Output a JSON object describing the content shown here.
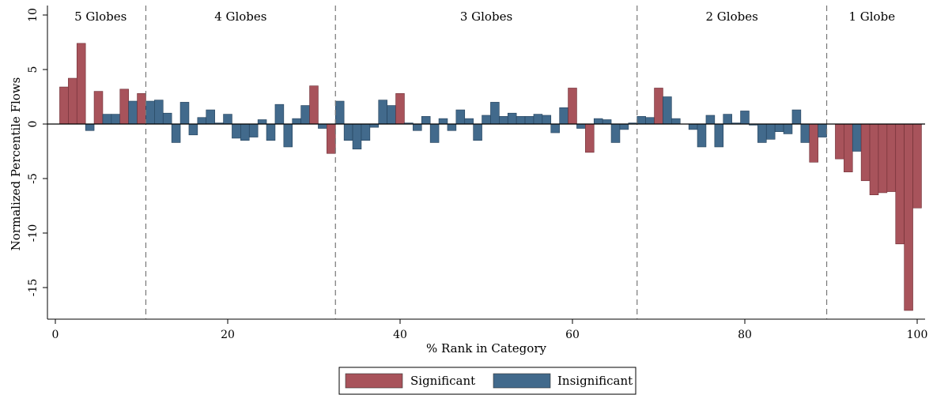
{
  "chart_data": {
    "type": "bar",
    "xlabel": "% Rank in Category",
    "ylabel": "Normalized Percentile Flows",
    "xlim": [
      0,
      100
    ],
    "ylim": [
      -18,
      10
    ],
    "xticks": [
      0,
      20,
      40,
      60,
      80,
      100
    ],
    "yticks": [
      10,
      5,
      0,
      -5,
      -10,
      -15
    ],
    "ytick_labels": [
      "10",
      "5",
      "0",
      "-5",
      "-10",
      "-15"
    ],
    "grid": false,
    "colors": {
      "Significant": "#a8535b",
      "Insignificant": "#426a8c"
    },
    "groups": [
      {
        "label": "5 Globes",
        "start": 0,
        "end": 10.5
      },
      {
        "label": "4 Globes",
        "start": 10.5,
        "end": 32.5
      },
      {
        "label": "3 Globes",
        "start": 32.5,
        "end": 67.5
      },
      {
        "label": "2 Globes",
        "start": 67.5,
        "end": 89.5
      },
      {
        "label": "1 Globe",
        "start": 89.5,
        "end": 100
      }
    ],
    "legend": {
      "position": "bottom-center",
      "entries": [
        "Significant",
        "Insignificant"
      ]
    },
    "x": [
      1,
      2,
      3,
      4,
      5,
      6,
      7,
      8,
      9,
      10,
      11,
      12,
      13,
      14,
      15,
      16,
      17,
      18,
      19,
      20,
      21,
      22,
      23,
      24,
      25,
      26,
      27,
      28,
      29,
      30,
      31,
      32,
      33,
      34,
      35,
      36,
      37,
      38,
      39,
      40,
      41,
      42,
      43,
      44,
      45,
      46,
      47,
      48,
      49,
      50,
      51,
      52,
      53,
      54,
      55,
      56,
      57,
      58,
      59,
      60,
      61,
      62,
      63,
      64,
      65,
      66,
      67,
      68,
      69,
      70,
      71,
      72,
      73,
      74,
      75,
      76,
      77,
      78,
      79,
      80,
      81,
      82,
      83,
      84,
      85,
      86,
      87,
      88,
      89,
      90,
      91,
      92,
      93,
      94,
      95,
      96,
      97,
      98,
      99,
      100
    ],
    "values": [
      3.4,
      4.2,
      7.4,
      -0.6,
      3.0,
      0.9,
      0.9,
      3.2,
      2.1,
      2.8,
      2.1,
      2.2,
      1.0,
      -1.7,
      2.0,
      -1.0,
      0.6,
      1.3,
      0.1,
      0.9,
      -1.3,
      -1.5,
      -1.2,
      0.4,
      -1.5,
      1.8,
      -2.1,
      0.5,
      1.7,
      3.5,
      -0.4,
      -2.7,
      2.1,
      -1.5,
      -2.3,
      -1.5,
      -0.3,
      2.2,
      1.7,
      2.8,
      0.1,
      -0.6,
      0.7,
      -1.7,
      0.5,
      -0.6,
      1.3,
      0.5,
      -1.5,
      0.8,
      2.0,
      0.7,
      1.0,
      0.7,
      0.7,
      0.9,
      0.8,
      -0.8,
      1.5,
      3.3,
      -0.4,
      -2.6,
      0.5,
      0.4,
      -1.7,
      -0.5,
      0.1,
      0.7,
      0.6,
      3.3,
      2.5,
      0.5,
      0.0,
      -0.5,
      -2.1,
      0.8,
      -2.1,
      0.9,
      0.1,
      1.2,
      -0.1,
      -1.7,
      -1.4,
      -0.7,
      -0.9,
      1.3,
      -1.7,
      -3.5,
      -1.2,
      0.0,
      -3.2,
      -4.4,
      -2.5,
      -5.2,
      -6.5,
      -6.3,
      -6.2,
      -11.0,
      -17.1,
      -7.7
    ],
    "significant": [
      1,
      1,
      1,
      0,
      1,
      0,
      0,
      1,
      0,
      1,
      0,
      0,
      0,
      0,
      0,
      0,
      0,
      0,
      0,
      0,
      0,
      0,
      0,
      0,
      0,
      0,
      0,
      0,
      0,
      1,
      0,
      1,
      0,
      0,
      0,
      0,
      0,
      0,
      0,
      1,
      0,
      0,
      0,
      0,
      0,
      0,
      0,
      0,
      0,
      0,
      0,
      0,
      0,
      0,
      0,
      0,
      0,
      0,
      0,
      1,
      0,
      1,
      0,
      0,
      0,
      0,
      0,
      0,
      0,
      1,
      0,
      0,
      0,
      0,
      0,
      0,
      0,
      0,
      0,
      0,
      0,
      0,
      0,
      0,
      0,
      0,
      0,
      1,
      0,
      0,
      1,
      1,
      0,
      1,
      1,
      1,
      1,
      1,
      1,
      1
    ]
  }
}
